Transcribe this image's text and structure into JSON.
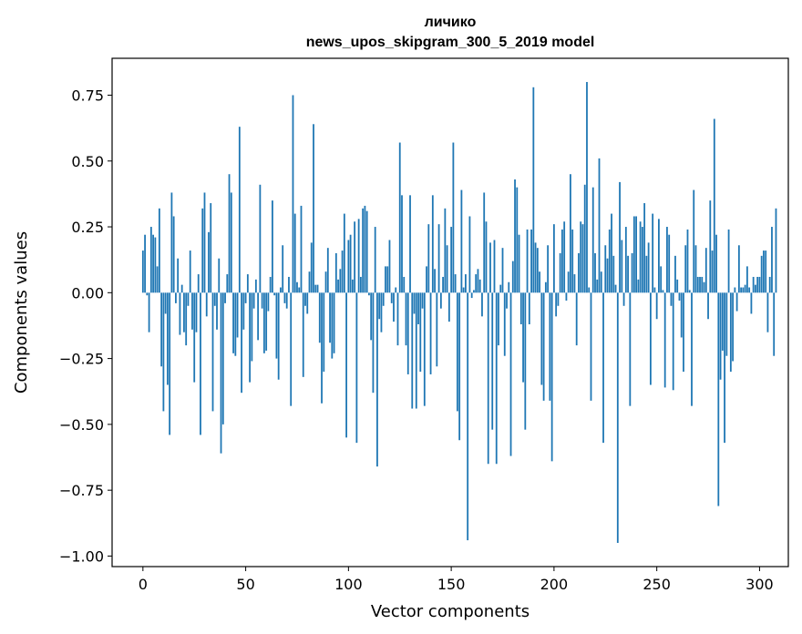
{
  "chart_data": {
    "type": "bar",
    "title": "личико",
    "subtitle": "news_upos_skipgram_300_5_2019 model",
    "xlabel": "Vector components",
    "ylabel": "Components values",
    "xlim": [
      -15,
      314
    ],
    "ylim": [
      -1.04,
      0.89
    ],
    "xticks": [
      0,
      50,
      100,
      150,
      200,
      250,
      300
    ],
    "yticks": [
      -1.0,
      -0.75,
      -0.5,
      -0.25,
      0.0,
      0.25,
      0.5,
      0.75
    ],
    "ytick_labels": [
      "−1.00",
      "−0.75",
      "−0.50",
      "−0.25",
      "0.00",
      "0.25",
      "0.50",
      "0.75"
    ],
    "bar_color": "#1f77b4",
    "grid": false,
    "values": [
      0.16,
      0.22,
      -0.01,
      -0.15,
      0.25,
      0.22,
      0.21,
      0.1,
      0.32,
      -0.28,
      -0.45,
      -0.08,
      -0.35,
      -0.54,
      0.38,
      0.29,
      -0.04,
      0.13,
      -0.16,
      0.03,
      -0.15,
      -0.2,
      -0.05,
      0.16,
      -0.14,
      -0.34,
      -0.15,
      0.07,
      -0.54,
      0.32,
      0.38,
      -0.09,
      0.23,
      0.34,
      -0.45,
      -0.05,
      -0.14,
      0.13,
      -0.61,
      -0.5,
      -0.04,
      0.07,
      0.45,
      0.38,
      -0.23,
      -0.24,
      -0.17,
      0.63,
      -0.38,
      -0.14,
      -0.04,
      0.07,
      -0.34,
      -0.26,
      -0.06,
      0.05,
      -0.18,
      0.41,
      -0.06,
      -0.23,
      -0.22,
      -0.07,
      0.06,
      0.35,
      -0.01,
      -0.25,
      -0.33,
      0.02,
      0.18,
      -0.04,
      -0.06,
      0.06,
      -0.43,
      0.75,
      0.3,
      0.04,
      0.02,
      0.33,
      -0.32,
      -0.05,
      -0.08,
      0.08,
      0.19,
      0.64,
      0.03,
      0.03,
      -0.19,
      -0.42,
      -0.3,
      0.08,
      0.17,
      -0.19,
      -0.25,
      -0.23,
      0.15,
      0.05,
      0.09,
      0.16,
      0.3,
      -0.55,
      0.2,
      0.22,
      0.05,
      0.27,
      -0.57,
      0.28,
      0.06,
      0.32,
      0.33,
      0.31,
      -0.01,
      -0.18,
      -0.38,
      0.25,
      -0.66,
      -0.1,
      -0.15,
      -0.05,
      0.1,
      0.1,
      0.2,
      -0.04,
      -0.11,
      0.02,
      -0.2,
      0.57,
      0.37,
      0.06,
      -0.2,
      -0.31,
      0.37,
      -0.44,
      -0.08,
      -0.44,
      -0.12,
      -0.3,
      -0.06,
      -0.43,
      0.1,
      0.26,
      -0.31,
      0.37,
      0.09,
      -0.28,
      0.26,
      -0.06,
      0.06,
      0.32,
      0.18,
      -0.11,
      0.25,
      0.57,
      0.07,
      -0.45,
      -0.56,
      0.39,
      0.02,
      0.07,
      -0.94,
      0.29,
      -0.02,
      0.01,
      0.07,
      0.09,
      0.05,
      -0.09,
      0.38,
      0.27,
      -0.65,
      0.19,
      -0.52,
      0.2,
      -0.65,
      -0.2,
      0.03,
      0.17,
      -0.24,
      -0.06,
      0.04,
      -0.62,
      0.12,
      0.43,
      0.4,
      0.22,
      -0.12,
      -0.34,
      -0.52,
      0.24,
      -0.12,
      0.24,
      0.78,
      0.19,
      0.17,
      0.08,
      -0.35,
      -0.41,
      0.04,
      0.18,
      -0.41,
      -0.64,
      0.26,
      -0.09,
      -0.05,
      0.15,
      0.24,
      0.27,
      -0.03,
      0.08,
      0.45,
      0.24,
      0.07,
      -0.2,
      0.15,
      0.27,
      0.26,
      0.41,
      0.8,
      0.02,
      -0.41,
      0.4,
      0.15,
      0.05,
      0.51,
      0.08,
      -0.57,
      0.18,
      0.13,
      0.24,
      0.3,
      0.14,
      0.03,
      -0.95,
      0.42,
      0.2,
      -0.05,
      0.25,
      0.14,
      -0.43,
      0.15,
      0.29,
      0.29,
      0.05,
      0.27,
      0.25,
      0.34,
      0.14,
      0.19,
      -0.35,
      0.3,
      0.02,
      -0.1,
      0.28,
      0.1,
      0.01,
      -0.36,
      0.25,
      0.22,
      -0.05,
      -0.37,
      0.14,
      0.05,
      -0.03,
      -0.17,
      -0.3,
      0.18,
      0.24,
      0.01,
      -0.43,
      0.39,
      0.18,
      0.06,
      0.06,
      0.06,
      0.04,
      0.17,
      -0.1,
      0.35,
      0.16,
      0.66,
      0.22,
      -0.81,
      -0.33,
      -0.22,
      -0.57,
      -0.24,
      0.24,
      -0.3,
      -0.26,
      0.02,
      -0.07,
      0.18,
      0.02,
      0.02,
      0.03,
      0.1,
      0.02,
      -0.08,
      0.06,
      0.03,
      0.06,
      0.06,
      0.14,
      0.16,
      0.16,
      -0.15,
      0.06,
      0.25,
      -0.24,
      0.32
    ]
  }
}
